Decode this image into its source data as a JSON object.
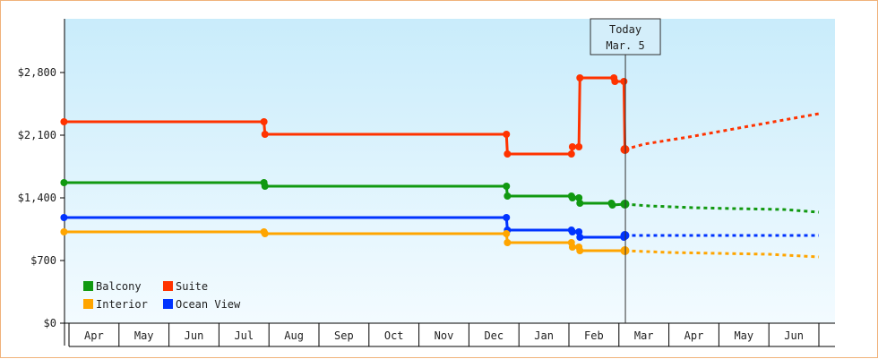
{
  "chart_data": {
    "type": "line",
    "title": "",
    "xlabel": "",
    "ylabel": "",
    "ylim": [
      0,
      3400
    ],
    "y_ticks": [
      {
        "value": 0,
        "label": "$0"
      },
      {
        "value": 700,
        "label": "$700"
      },
      {
        "value": 1400,
        "label": "$1,400"
      },
      {
        "value": 2100,
        "label": "$2,100"
      },
      {
        "value": 2800,
        "label": "$2,800"
      }
    ],
    "months": [
      "Apr",
      "May",
      "Jun",
      "Jul",
      "Aug",
      "Sep",
      "Oct",
      "Nov",
      "Dec",
      "Jan",
      "Feb",
      "Mar",
      "Apr",
      "May",
      "Jun"
    ],
    "today": {
      "line1": "Today",
      "line2": "Mar. 5",
      "x": 11.13
    },
    "legend_placement": "bottom-left",
    "legend": [
      {
        "name": "Balcony",
        "color": "#119911"
      },
      {
        "name": "Suite",
        "color": "#ff3300"
      },
      {
        "name": "Interior",
        "color": "#ffa500"
      },
      {
        "name": "Ocean View",
        "color": "#0033ff"
      }
    ],
    "series": [
      {
        "name": "Suite",
        "color": "#ff3300",
        "points": [
          [
            -0.1,
            2250
          ],
          [
            3.9,
            2250
          ],
          [
            3.92,
            2110
          ],
          [
            8.75,
            2110
          ],
          [
            8.77,
            1890
          ],
          [
            8.9,
            1890
          ],
          [
            9.2,
            1890
          ],
          [
            10.05,
            1890
          ],
          [
            10.07,
            1970
          ],
          [
            10.2,
            1970
          ],
          [
            10.22,
            2740
          ],
          [
            10.9,
            2740
          ],
          [
            10.92,
            2700
          ],
          [
            11.1,
            2700
          ],
          [
            11.12,
            1940
          ]
        ],
        "forecast": [
          [
            11.12,
            1940
          ],
          [
            11.5,
            2000
          ],
          [
            12.4,
            2080
          ],
          [
            13.3,
            2170
          ],
          [
            14.3,
            2270
          ],
          [
            15.0,
            2340
          ]
        ]
      },
      {
        "name": "Balcony",
        "color": "#119911",
        "points": [
          [
            -0.1,
            1570
          ],
          [
            3.9,
            1570
          ],
          [
            3.92,
            1530
          ],
          [
            8.75,
            1530
          ],
          [
            8.77,
            1420
          ],
          [
            9.35,
            1420
          ],
          [
            9.5,
            1420
          ],
          [
            10.05,
            1420
          ],
          [
            10.07,
            1400
          ],
          [
            10.2,
            1400
          ],
          [
            10.22,
            1340
          ],
          [
            10.85,
            1340
          ],
          [
            10.87,
            1320
          ],
          [
            11.12,
            1330
          ]
        ],
        "forecast": [
          [
            11.12,
            1330
          ],
          [
            11.6,
            1310
          ],
          [
            12.5,
            1290
          ],
          [
            13.3,
            1280
          ],
          [
            14.3,
            1270
          ],
          [
            15.0,
            1240
          ]
        ]
      },
      {
        "name": "Ocean View",
        "color": "#0033ff",
        "points": [
          [
            -0.1,
            1180
          ],
          [
            3.9,
            1180
          ],
          [
            8.75,
            1180
          ],
          [
            8.77,
            1040
          ],
          [
            8.95,
            1040
          ],
          [
            9.2,
            1040
          ],
          [
            10.05,
            1040
          ],
          [
            10.07,
            1020
          ],
          [
            10.2,
            1020
          ],
          [
            10.22,
            960
          ],
          [
            10.85,
            960
          ],
          [
            11.1,
            960
          ],
          [
            11.12,
            980
          ]
        ],
        "forecast": [
          [
            11.12,
            980
          ],
          [
            12.0,
            980
          ],
          [
            13.0,
            980
          ],
          [
            14.0,
            980
          ],
          [
            15.0,
            980
          ]
        ]
      },
      {
        "name": "Interior",
        "color": "#ffa500",
        "points": [
          [
            -0.1,
            1020
          ],
          [
            3.9,
            1020
          ],
          [
            3.92,
            1000
          ],
          [
            8.75,
            1000
          ],
          [
            8.77,
            900
          ],
          [
            8.9,
            900
          ],
          [
            9.4,
            900
          ],
          [
            10.05,
            900
          ],
          [
            10.07,
            850
          ],
          [
            10.2,
            850
          ],
          [
            10.22,
            810
          ],
          [
            10.85,
            810
          ],
          [
            11.12,
            810
          ]
        ],
        "forecast": [
          [
            11.12,
            810
          ],
          [
            12.0,
            790
          ],
          [
            13.0,
            780
          ],
          [
            14.0,
            770
          ],
          [
            15.0,
            740
          ]
        ]
      }
    ]
  }
}
